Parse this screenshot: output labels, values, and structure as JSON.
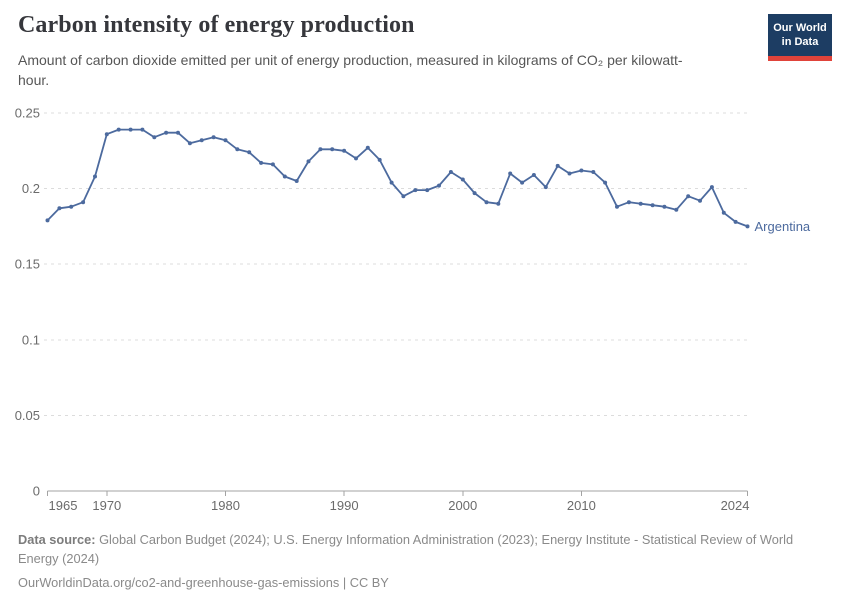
{
  "header": {
    "title": "Carbon intensity of energy production",
    "subtitle": "Amount of carbon dioxide emitted per unit of energy production, measured in kilograms of CO₂ per kilowatt-hour."
  },
  "logo": {
    "line1": "Our World",
    "line2": "in Data",
    "bg_color": "#1d3d63",
    "stripe_color": "#e0433a"
  },
  "chart_data": {
    "type": "line",
    "title": "Carbon intensity of energy production",
    "ylabel": "",
    "xlabel": "",
    "unit": "kilograms of CO₂ per kilowatt-hour",
    "xlim": [
      1965,
      2024
    ],
    "ylim": [
      0,
      0.25
    ],
    "y_ticks": [
      0,
      0.05,
      0.1,
      0.15,
      0.2,
      0.25
    ],
    "x_ticks": [
      1965,
      1970,
      1980,
      1990,
      2000,
      2010,
      2024
    ],
    "grid": "horizontal-dashed",
    "legend_position": "end-of-line-label",
    "end_label": "Argentina",
    "series": [
      {
        "name": "Argentina",
        "color": "#4c6a9e",
        "x": [
          1965,
          1966,
          1967,
          1968,
          1969,
          1970,
          1971,
          1972,
          1973,
          1974,
          1975,
          1976,
          1977,
          1978,
          1979,
          1980,
          1981,
          1982,
          1983,
          1984,
          1985,
          1986,
          1987,
          1988,
          1989,
          1990,
          1991,
          1992,
          1993,
          1994,
          1995,
          1996,
          1997,
          1998,
          1999,
          2000,
          2001,
          2002,
          2003,
          2004,
          2005,
          2006,
          2007,
          2008,
          2009,
          2010,
          2011,
          2012,
          2013,
          2014,
          2015,
          2016,
          2017,
          2018,
          2019,
          2020,
          2021,
          2022,
          2023,
          2024
        ],
        "values": [
          0.179,
          0.187,
          0.188,
          0.191,
          0.208,
          0.236,
          0.239,
          0.239,
          0.239,
          0.234,
          0.237,
          0.237,
          0.23,
          0.232,
          0.234,
          0.232,
          0.226,
          0.224,
          0.217,
          0.216,
          0.208,
          0.205,
          0.218,
          0.226,
          0.226,
          0.225,
          0.22,
          0.227,
          0.219,
          0.204,
          0.195,
          0.199,
          0.199,
          0.202,
          0.211,
          0.206,
          0.197,
          0.191,
          0.19,
          0.21,
          0.204,
          0.209,
          0.201,
          0.215,
          0.21,
          0.212,
          0.211,
          0.204,
          0.188,
          0.191,
          0.19,
          0.189,
          0.188,
          0.186,
          0.195,
          0.192,
          0.201,
          0.184,
          0.178,
          0.175
        ]
      }
    ]
  },
  "footer": {
    "source_label": "Data source:",
    "source_text": "Global Carbon Budget (2024); U.S. Energy Information Administration (2023); Energy Institute - Statistical Review of World Energy (2024)",
    "url_text": "OurWorldinData.org/co2-and-greenhouse-gas-emissions",
    "separator": "|",
    "license": "CC BY"
  }
}
